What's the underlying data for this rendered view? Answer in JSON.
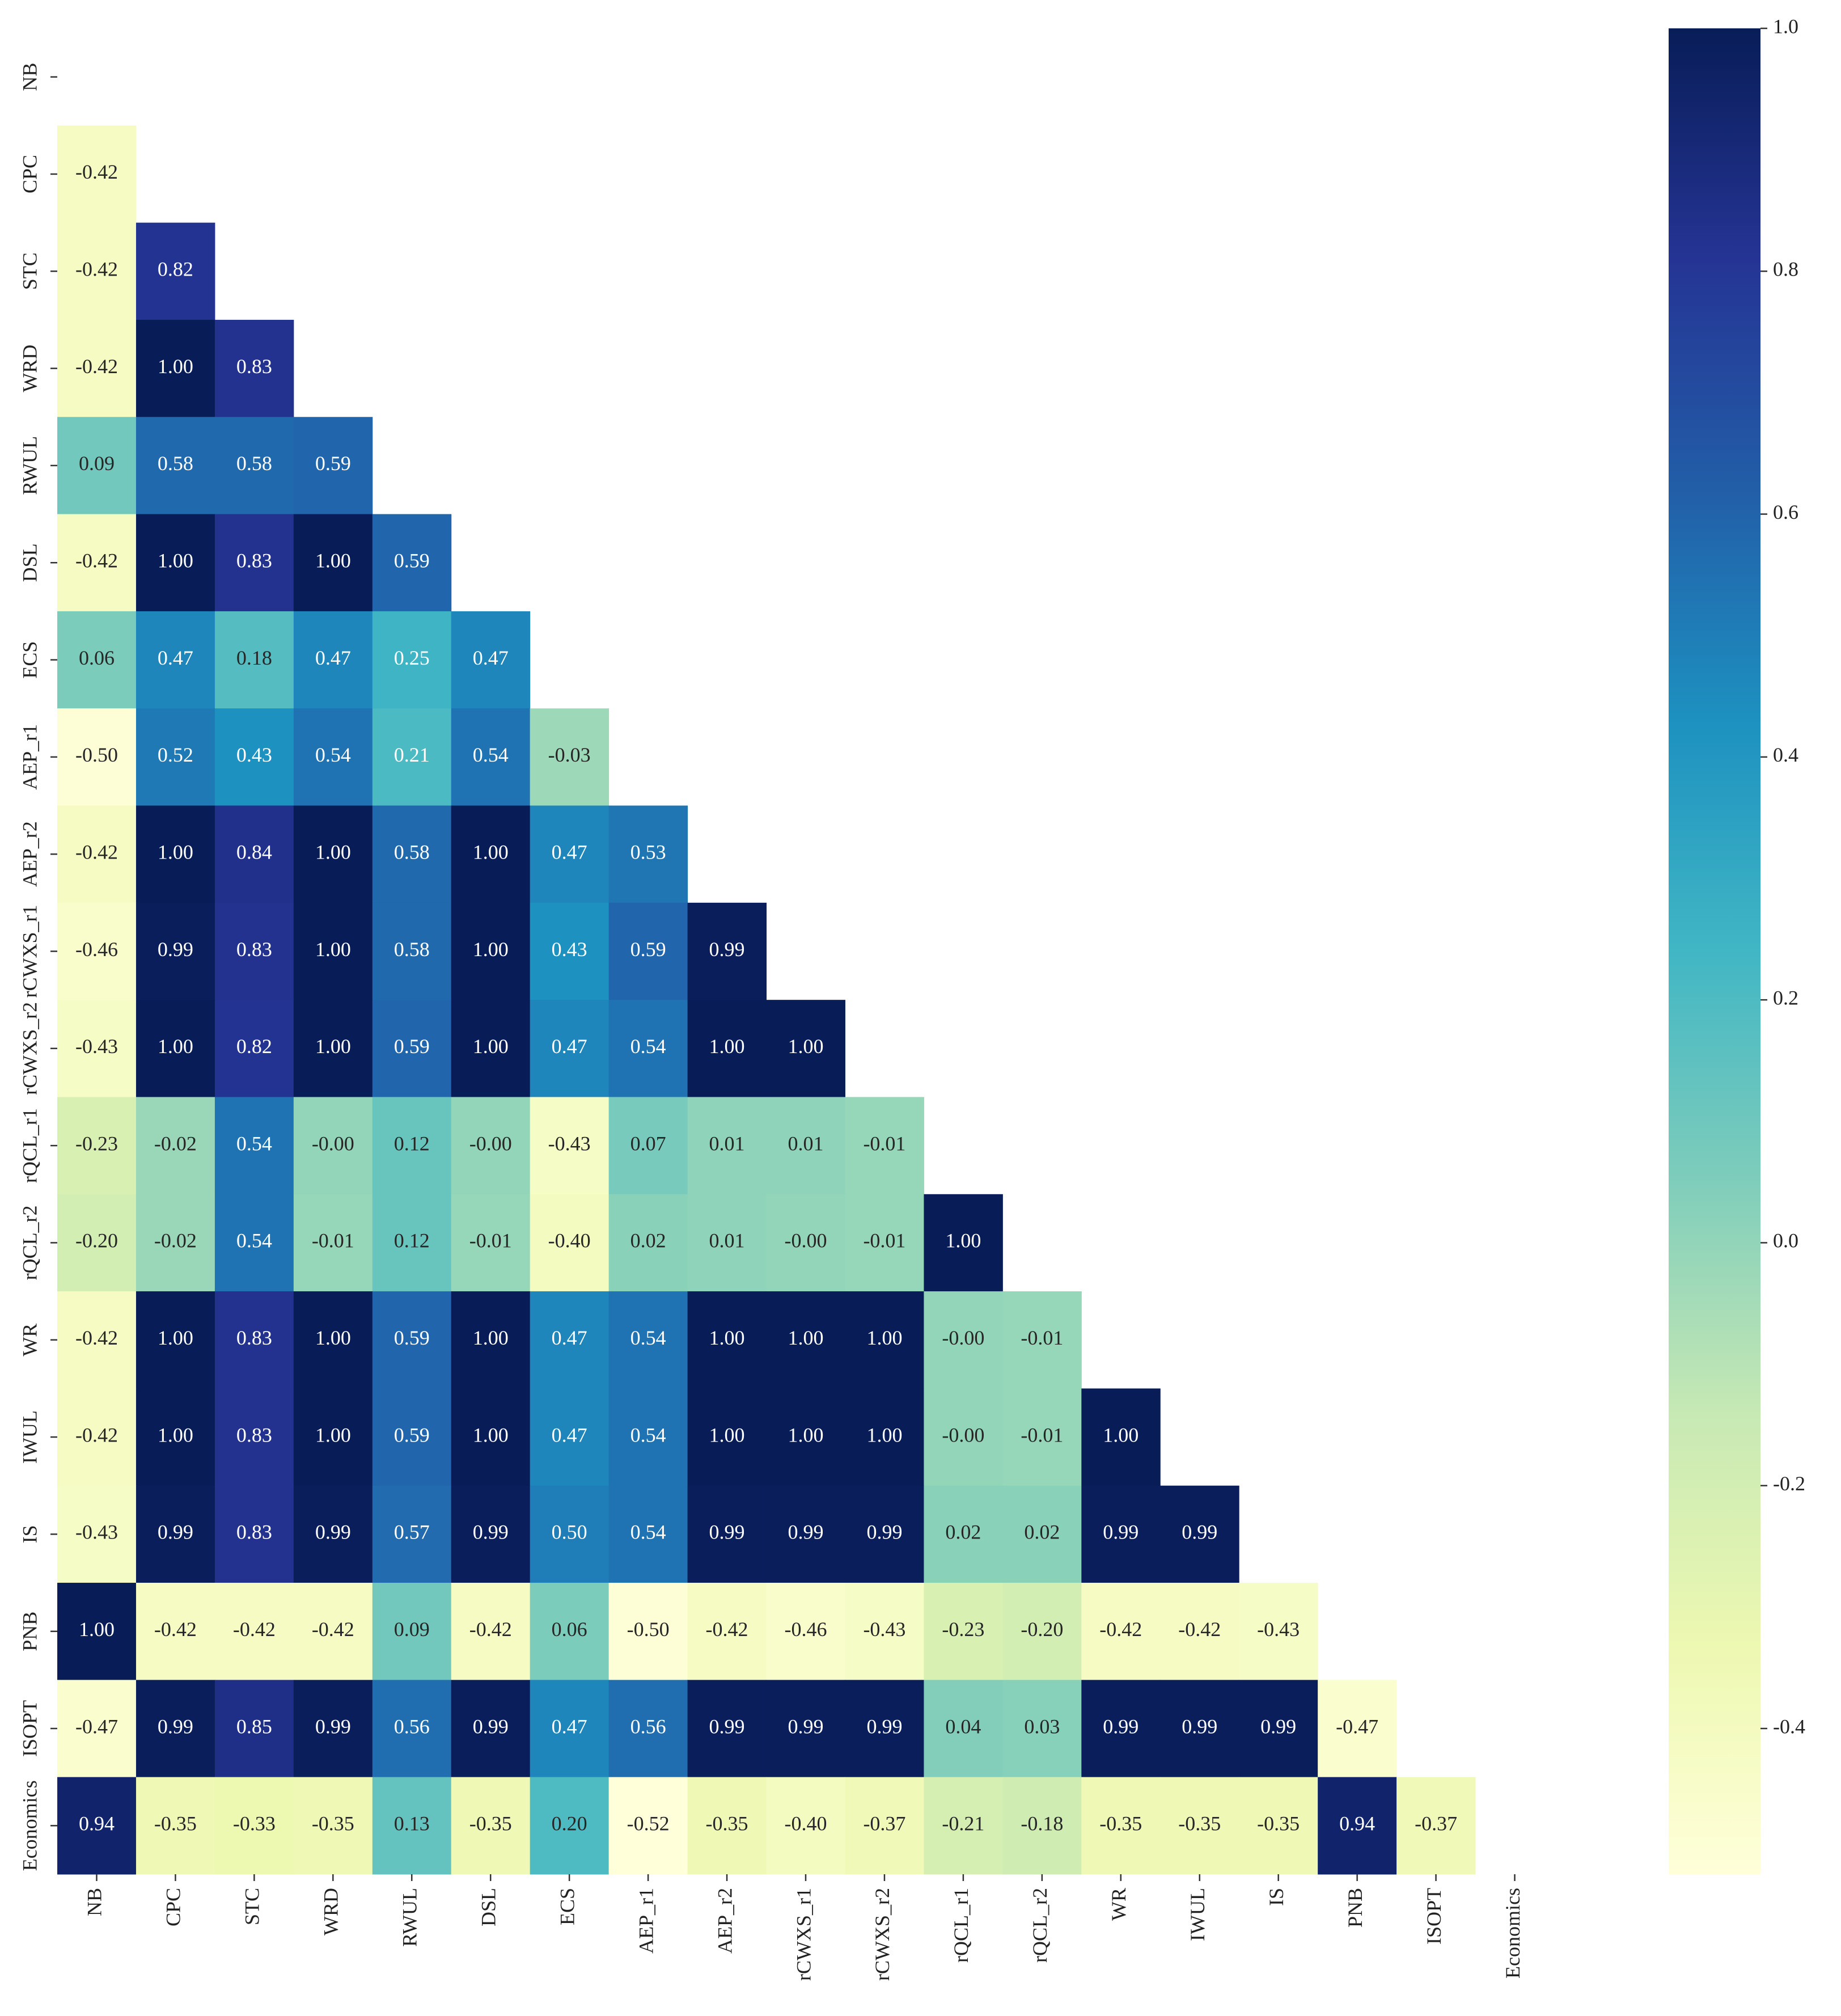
{
  "chart_data": {
    "type": "heatmap",
    "categories": [
      "NB",
      "CPC",
      "STC",
      "WRD",
      "RWUL",
      "DSL",
      "ECS",
      "AEP_r1",
      "AEP_r2",
      "rCWXS_r1",
      "rCWXS_r2",
      "rQCL_r1",
      "rQCL_r2",
      "WR",
      "IWUL",
      "IS",
      "PNB",
      "ISOPT",
      "Economics"
    ],
    "values": [
      [
        null,
        null,
        null,
        null,
        null,
        null,
        null,
        null,
        null,
        null,
        null,
        null,
        null,
        null,
        null,
        null,
        null,
        null,
        null
      ],
      [
        -0.42,
        null,
        null,
        null,
        null,
        null,
        null,
        null,
        null,
        null,
        null,
        null,
        null,
        null,
        null,
        null,
        null,
        null,
        null
      ],
      [
        -0.42,
        0.82,
        null,
        null,
        null,
        null,
        null,
        null,
        null,
        null,
        null,
        null,
        null,
        null,
        null,
        null,
        null,
        null,
        null
      ],
      [
        -0.42,
        1,
        0.83,
        null,
        null,
        null,
        null,
        null,
        null,
        null,
        null,
        null,
        null,
        null,
        null,
        null,
        null,
        null,
        null
      ],
      [
        0.09,
        0.58,
        0.58,
        0.59,
        null,
        null,
        null,
        null,
        null,
        null,
        null,
        null,
        null,
        null,
        null,
        null,
        null,
        null,
        null
      ],
      [
        -0.42,
        1,
        0.83,
        1,
        0.59,
        null,
        null,
        null,
        null,
        null,
        null,
        null,
        null,
        null,
        null,
        null,
        null,
        null,
        null
      ],
      [
        0.06,
        0.47,
        0.18,
        0.47,
        0.25,
        0.47,
        null,
        null,
        null,
        null,
        null,
        null,
        null,
        null,
        null,
        null,
        null,
        null,
        null
      ],
      [
        -0.5,
        0.52,
        0.43,
        0.54,
        0.21,
        0.54,
        -0.03,
        null,
        null,
        null,
        null,
        null,
        null,
        null,
        null,
        null,
        null,
        null,
        null
      ],
      [
        -0.42,
        1,
        0.84,
        1,
        0.58,
        1,
        0.47,
        0.53,
        null,
        null,
        null,
        null,
        null,
        null,
        null,
        null,
        null,
        null,
        null
      ],
      [
        -0.46,
        0.99,
        0.83,
        1,
        0.58,
        1,
        0.43,
        0.59,
        0.99,
        null,
        null,
        null,
        null,
        null,
        null,
        null,
        null,
        null,
        null
      ],
      [
        -0.43,
        1,
        0.82,
        1,
        0.59,
        1,
        0.47,
        0.54,
        1,
        1,
        null,
        null,
        null,
        null,
        null,
        null,
        null,
        null,
        null
      ],
      [
        -0.23,
        -0.02,
        0.54,
        -0.001,
        0.12,
        -0.001,
        -0.43,
        0.07,
        0.01,
        0.01,
        -0.01,
        null,
        null,
        null,
        null,
        null,
        null,
        null,
        null
      ],
      [
        -0.2,
        -0.02,
        0.54,
        -0.01,
        0.12,
        -0.01,
        -0.4,
        0.02,
        0.01,
        -0.001,
        -0.01,
        1,
        null,
        null,
        null,
        null,
        null,
        null,
        null
      ],
      [
        -0.42,
        1,
        0.83,
        1,
        0.59,
        1,
        0.47,
        0.54,
        1,
        1,
        1,
        -0.001,
        -0.01,
        null,
        null,
        null,
        null,
        null,
        null
      ],
      [
        -0.42,
        1,
        0.83,
        1,
        0.59,
        1,
        0.47,
        0.54,
        1,
        1,
        1,
        -0.001,
        -0.01,
        1,
        null,
        null,
        null,
        null,
        null
      ],
      [
        -0.43,
        0.99,
        0.83,
        0.99,
        0.57,
        0.99,
        0.5,
        0.54,
        0.99,
        0.99,
        0.99,
        0.02,
        0.02,
        0.99,
        0.99,
        null,
        null,
        null,
        null
      ],
      [
        1,
        -0.42,
        -0.42,
        -0.42,
        0.09,
        -0.42,
        0.06,
        -0.5,
        -0.42,
        -0.46,
        -0.43,
        -0.23,
        -0.2,
        -0.42,
        -0.42,
        -0.43,
        null,
        null,
        null
      ],
      [
        -0.47,
        0.99,
        0.85,
        0.99,
        0.56,
        0.99,
        0.47,
        0.56,
        0.99,
        0.99,
        0.99,
        0.04,
        0.03,
        0.99,
        0.99,
        0.99,
        -0.47,
        null,
        null
      ],
      [
        0.94,
        -0.35,
        -0.33,
        -0.35,
        0.13,
        -0.35,
        0.2,
        -0.52,
        -0.35,
        -0.4,
        -0.37,
        -0.21,
        -0.18,
        -0.35,
        -0.35,
        -0.35,
        0.94,
        -0.37,
        null
      ]
    ],
    "value_labels": [
      [
        null,
        null,
        null,
        null,
        null,
        null,
        null,
        null,
        null,
        null,
        null,
        null,
        null,
        null,
        null,
        null,
        null,
        null,
        null
      ],
      [
        "-0.42",
        null,
        null,
        null,
        null,
        null,
        null,
        null,
        null,
        null,
        null,
        null,
        null,
        null,
        null,
        null,
        null,
        null,
        null
      ],
      [
        "-0.42",
        "0.82",
        null,
        null,
        null,
        null,
        null,
        null,
        null,
        null,
        null,
        null,
        null,
        null,
        null,
        null,
        null,
        null,
        null
      ],
      [
        "-0.42",
        "1.00",
        "0.83",
        null,
        null,
        null,
        null,
        null,
        null,
        null,
        null,
        null,
        null,
        null,
        null,
        null,
        null,
        null,
        null
      ],
      [
        "0.09",
        "0.58",
        "0.58",
        "0.59",
        null,
        null,
        null,
        null,
        null,
        null,
        null,
        null,
        null,
        null,
        null,
        null,
        null,
        null,
        null
      ],
      [
        "-0.42",
        "1.00",
        "0.83",
        "1.00",
        "0.59",
        null,
        null,
        null,
        null,
        null,
        null,
        null,
        null,
        null,
        null,
        null,
        null,
        null,
        null
      ],
      [
        "0.06",
        "0.47",
        "0.18",
        "0.47",
        "0.25",
        "0.47",
        null,
        null,
        null,
        null,
        null,
        null,
        null,
        null,
        null,
        null,
        null,
        null,
        null
      ],
      [
        "-0.50",
        "0.52",
        "0.43",
        "0.54",
        "0.21",
        "0.54",
        "-0.03",
        null,
        null,
        null,
        null,
        null,
        null,
        null,
        null,
        null,
        null,
        null,
        null
      ],
      [
        "-0.42",
        "1.00",
        "0.84",
        "1.00",
        "0.58",
        "1.00",
        "0.47",
        "0.53",
        null,
        null,
        null,
        null,
        null,
        null,
        null,
        null,
        null,
        null,
        null
      ],
      [
        "-0.46",
        "0.99",
        "0.83",
        "1.00",
        "0.58",
        "1.00",
        "0.43",
        "0.59",
        "0.99",
        null,
        null,
        null,
        null,
        null,
        null,
        null,
        null,
        null,
        null
      ],
      [
        "-0.43",
        "1.00",
        "0.82",
        "1.00",
        "0.59",
        "1.00",
        "0.47",
        "0.54",
        "1.00",
        "1.00",
        null,
        null,
        null,
        null,
        null,
        null,
        null,
        null,
        null
      ],
      [
        "-0.23",
        "-0.02",
        "0.54",
        "-0.00",
        "0.12",
        "-0.00",
        "-0.43",
        "0.07",
        "0.01",
        "0.01",
        "-0.01",
        null,
        null,
        null,
        null,
        null,
        null,
        null,
        null
      ],
      [
        "-0.20",
        "-0.02",
        "0.54",
        "-0.01",
        "0.12",
        "-0.01",
        "-0.40",
        "0.02",
        "0.01",
        "-0.00",
        "-0.01",
        "1.00",
        null,
        null,
        null,
        null,
        null,
        null,
        null
      ],
      [
        "-0.42",
        "1.00",
        "0.83",
        "1.00",
        "0.59",
        "1.00",
        "0.47",
        "0.54",
        "1.00",
        "1.00",
        "1.00",
        "-0.00",
        "-0.01",
        null,
        null,
        null,
        null,
        null,
        null
      ],
      [
        "-0.42",
        "1.00",
        "0.83",
        "1.00",
        "0.59",
        "1.00",
        "0.47",
        "0.54",
        "1.00",
        "1.00",
        "1.00",
        "-0.00",
        "-0.01",
        "1.00",
        null,
        null,
        null,
        null,
        null
      ],
      [
        "-0.43",
        "0.99",
        "0.83",
        "0.99",
        "0.57",
        "0.99",
        "0.50",
        "0.54",
        "0.99",
        "0.99",
        "0.99",
        "0.02",
        "0.02",
        "0.99",
        "0.99",
        null,
        null,
        null,
        null
      ],
      [
        "1.00",
        "-0.42",
        "-0.42",
        "-0.42",
        "0.09",
        "-0.42",
        "0.06",
        "-0.50",
        "-0.42",
        "-0.46",
        "-0.43",
        "-0.23",
        "-0.20",
        "-0.42",
        "-0.42",
        "-0.43",
        null,
        null,
        null
      ],
      [
        "-0.47",
        "0.99",
        "0.85",
        "0.99",
        "0.56",
        "0.99",
        "0.47",
        "0.56",
        "0.99",
        "0.99",
        "0.99",
        "0.04",
        "0.03",
        "0.99",
        "0.99",
        "0.99",
        "-0.47",
        null,
        null
      ],
      [
        "0.94",
        "-0.35",
        "-0.33",
        "-0.35",
        "0.13",
        "-0.35",
        "0.20",
        "-0.52",
        "-0.35",
        "-0.40",
        "-0.37",
        "-0.21",
        "-0.18",
        "-0.35",
        "-0.35",
        "-0.35",
        "0.94",
        "-0.37",
        null
      ]
    ],
    "colorscale": [
      "#ffffd9",
      "#edf8b1",
      "#c7e9b4",
      "#7fcdbb",
      "#41b6c4",
      "#1d91c0",
      "#225ea8",
      "#253494",
      "#081d58"
    ],
    "clim": [
      -0.52,
      1.0
    ],
    "colorbar_ticks": [
      {
        "value": 1,
        "label": "1.0"
      },
      0.8,
      0.6,
      0.4,
      0.2,
      {
        "value": 0,
        "label": "0.0"
      },
      -0.2,
      -0.4
    ]
  }
}
